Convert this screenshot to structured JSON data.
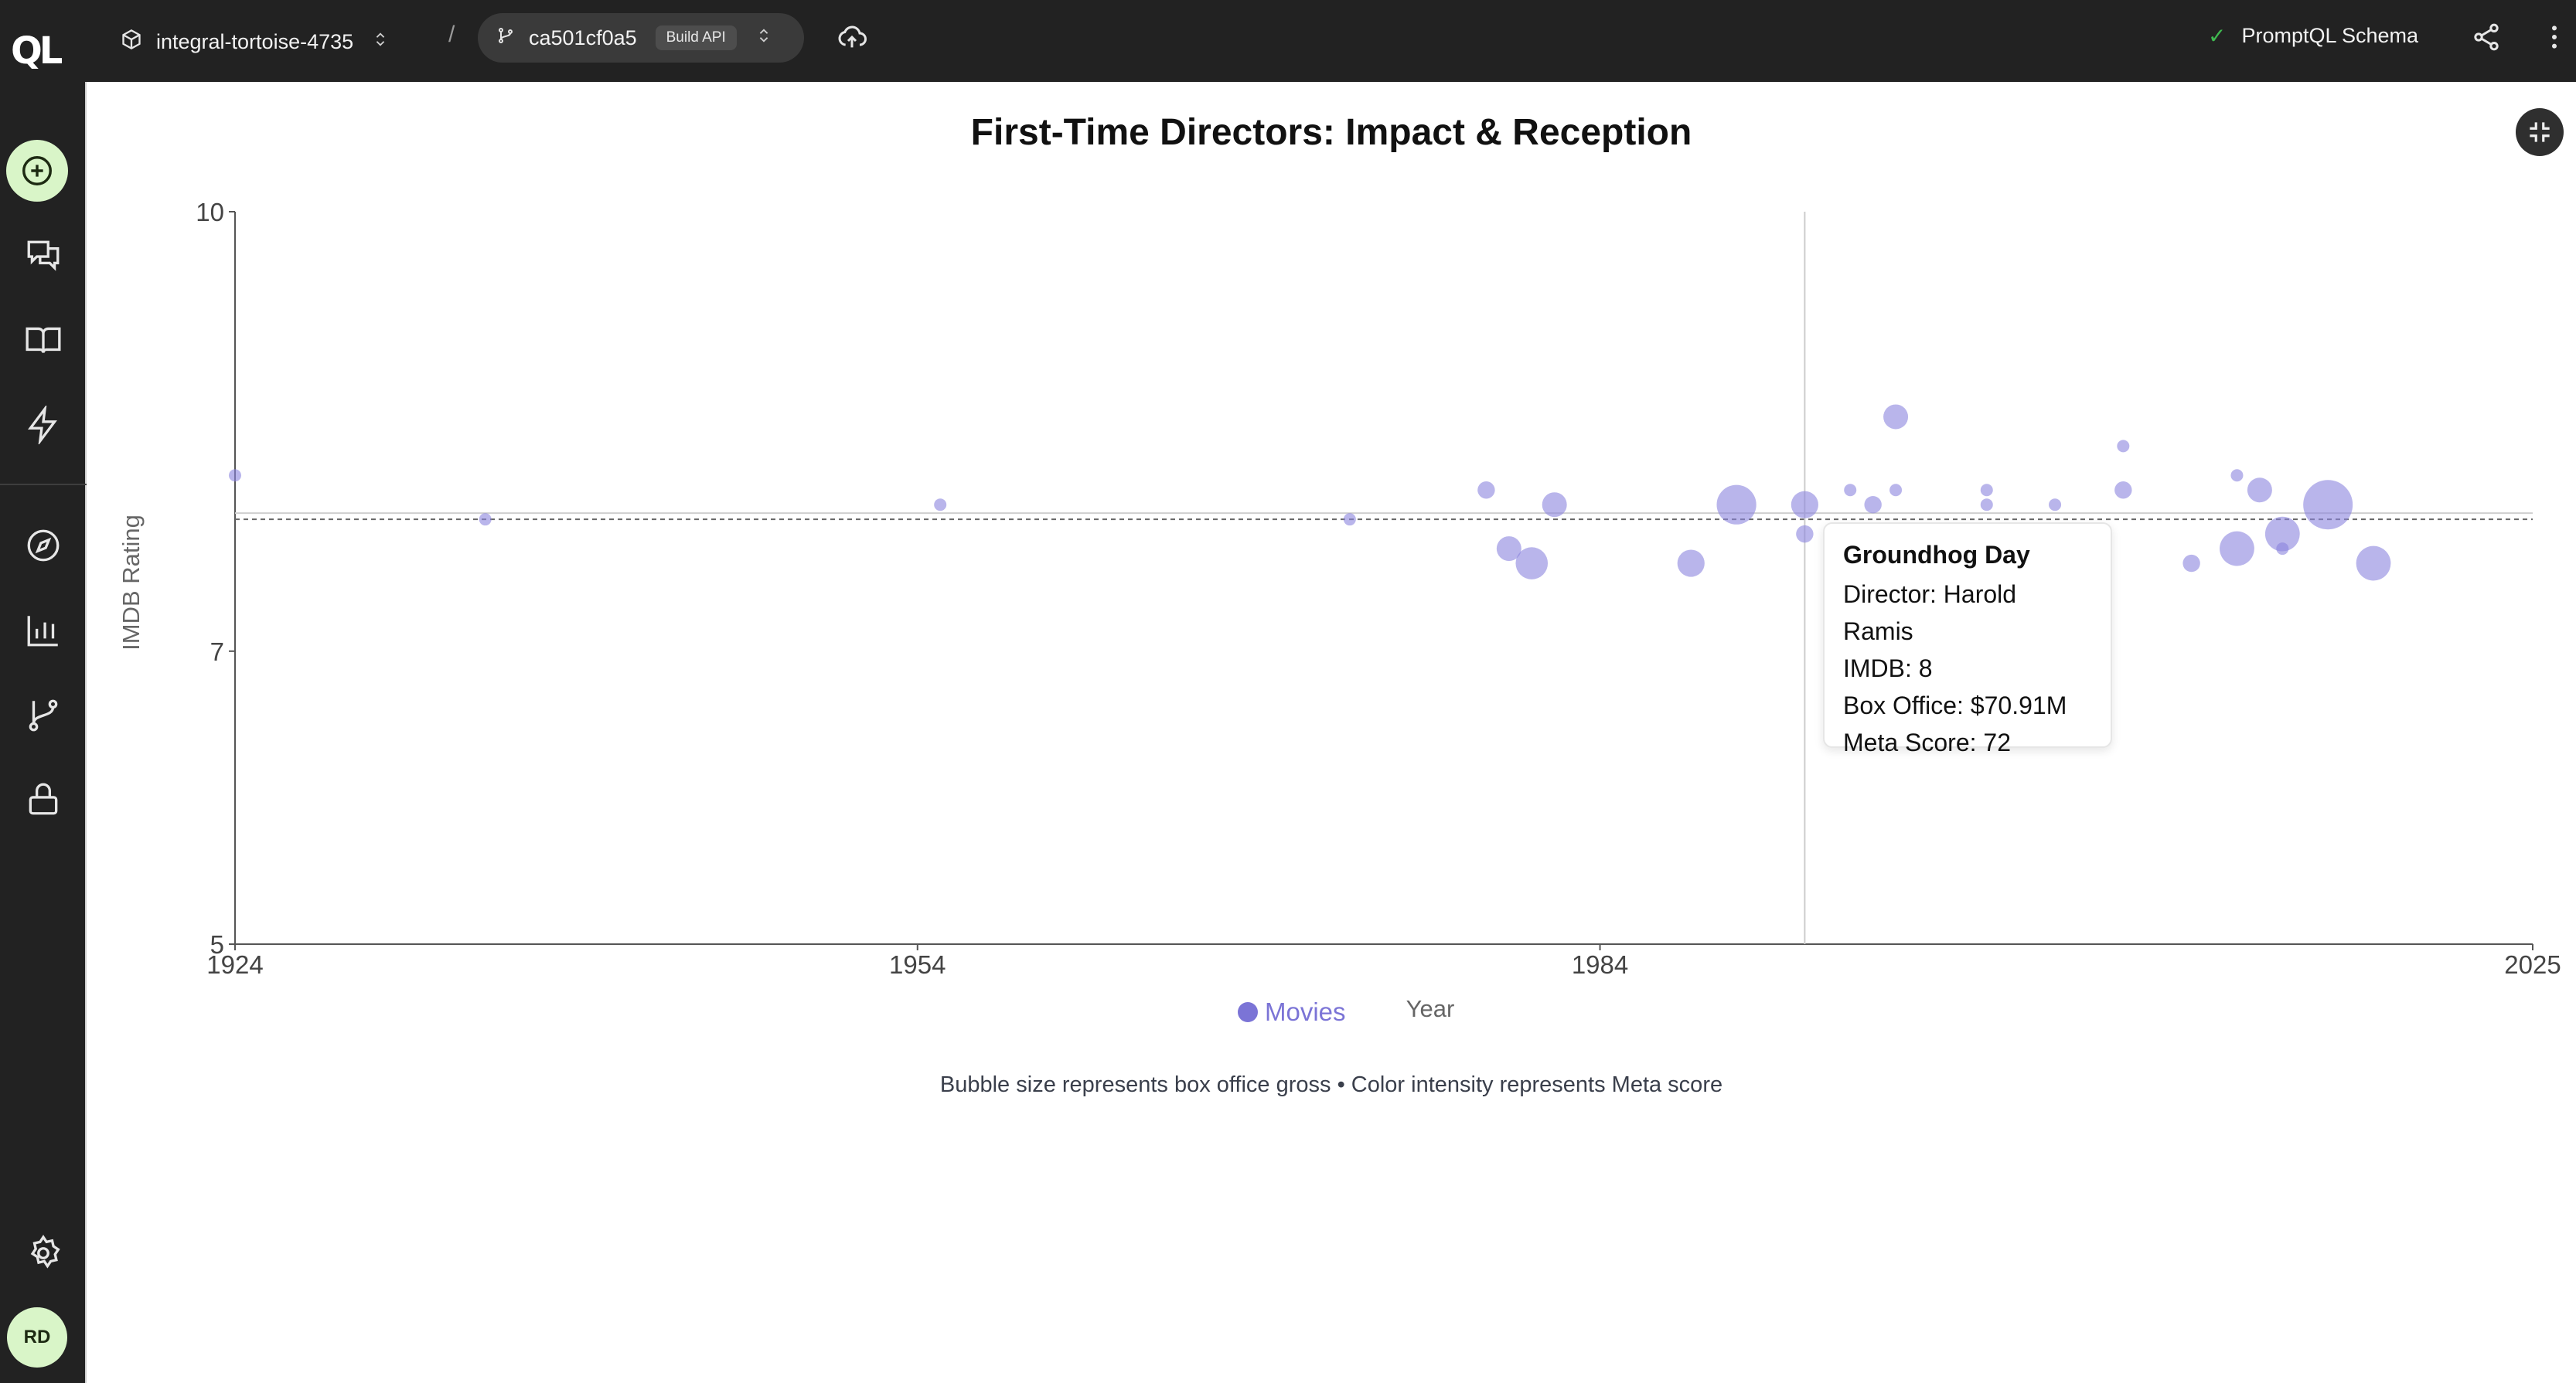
{
  "topbar": {
    "project_name": "integral-tortoise-4735",
    "breadcrumb_separator": "/",
    "branch_name": "ca501cf0a5",
    "build_badge": "Build API",
    "schema_status": "PromptQL Schema"
  },
  "sidebar": {
    "avatar_initials": "RD",
    "items": [
      "new-thread",
      "threads",
      "docs",
      "automations",
      "explore",
      "analytics",
      "branches",
      "security",
      "settings"
    ]
  },
  "chart_data": {
    "type": "scatter",
    "title": "First-Time Directors: Impact & Reception",
    "xlabel": "Year",
    "ylabel": "IMDB Rating",
    "xlim": [
      1924,
      2025
    ],
    "ylim": [
      5,
      10
    ],
    "x_ticks": [
      "1924",
      "1954",
      "1984",
      "2025"
    ],
    "y_ticks": [
      "5",
      "7",
      "10"
    ],
    "legend": [
      {
        "label": "Movies",
        "color": "#8a84dd"
      }
    ],
    "reference_line_y": 7.9,
    "hover_x": 1993,
    "series": [
      {
        "name": "Movies",
        "points": [
          {
            "x": 1924,
            "y": 8.2,
            "size": 1
          },
          {
            "x": 1935,
            "y": 7.9,
            "size": 1
          },
          {
            "x": 1955,
            "y": 8.0,
            "size": 1
          },
          {
            "x": 1973,
            "y": 7.9,
            "size": 1
          },
          {
            "x": 1979,
            "y": 8.1,
            "size": 1.4
          },
          {
            "x": 1980,
            "y": 7.7,
            "size": 2
          },
          {
            "x": 1981,
            "y": 7.6,
            "size": 2.6
          },
          {
            "x": 1982,
            "y": 8.0,
            "size": 2
          },
          {
            "x": 1988,
            "y": 7.6,
            "size": 2.2
          },
          {
            "x": 1990,
            "y": 8.0,
            "size": 3.2
          },
          {
            "x": 1993,
            "y": 8.0,
            "size": 2.2
          },
          {
            "x": 1993,
            "y": 7.8,
            "size": 1.4
          },
          {
            "x": 1995,
            "y": 8.1,
            "size": 1
          },
          {
            "x": 1996,
            "y": 8.0,
            "size": 1.4
          },
          {
            "x": 1997,
            "y": 8.1,
            "size": 1
          },
          {
            "x": 1997,
            "y": 8.6,
            "size": 2
          },
          {
            "x": 2001,
            "y": 8.1,
            "size": 1
          },
          {
            "x": 2001,
            "y": 8.0,
            "size": 1
          },
          {
            "x": 2004,
            "y": 8.0,
            "size": 1
          },
          {
            "x": 2007,
            "y": 8.1,
            "size": 1.4
          },
          {
            "x": 2007,
            "y": 8.4,
            "size": 1
          },
          {
            "x": 2010,
            "y": 7.6,
            "size": 1.4
          },
          {
            "x": 2012,
            "y": 8.2,
            "size": 1
          },
          {
            "x": 2012,
            "y": 7.7,
            "size": 2.8
          },
          {
            "x": 2013,
            "y": 8.1,
            "size": 2
          },
          {
            "x": 2014,
            "y": 7.8,
            "size": 2.8
          },
          {
            "x": 2014,
            "y": 7.7,
            "size": 1
          },
          {
            "x": 2016,
            "y": 8.0,
            "size": 4
          },
          {
            "x": 2018,
            "y": 7.6,
            "size": 2.8
          }
        ]
      }
    ]
  },
  "tooltip": {
    "title": "Groundhog Day",
    "director": "Director: Harold Ramis",
    "imdb": "IMDB: 8",
    "box_office": "Box Office: $70.91M",
    "meta_score": "Meta Score: 72"
  },
  "caption": "Bubble size represents box office gross • Color intensity represents Meta score"
}
